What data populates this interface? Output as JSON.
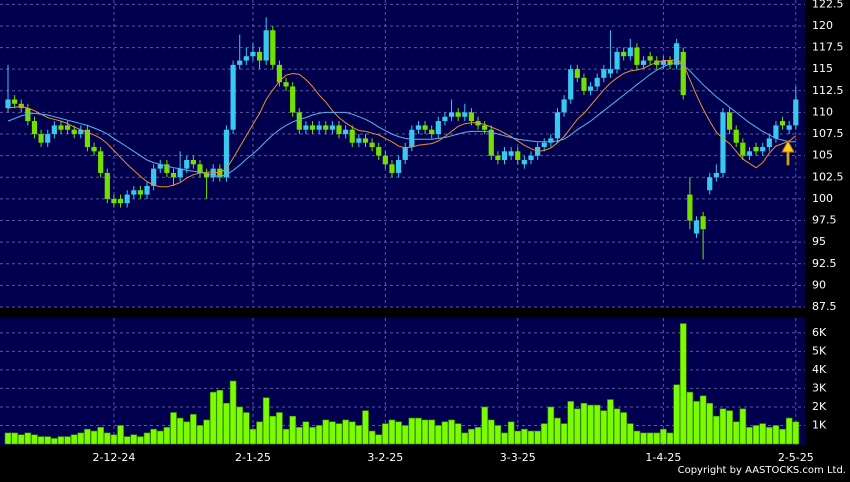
{
  "chart_data": {
    "type": "candlestick",
    "categories": [
      null,
      null,
      null,
      null,
      null,
      null,
      null,
      null,
      null,
      null,
      null,
      null,
      null,
      null,
      null,
      null,
      "2-12-24",
      null,
      null,
      null,
      null,
      null,
      null,
      null,
      null,
      null,
      null,
      null,
      null,
      null,
      null,
      null,
      null,
      null,
      null,
      null,
      null,
      "2-1-25",
      null,
      null,
      null,
      null,
      null,
      null,
      null,
      null,
      null,
      null,
      null,
      null,
      null,
      null,
      null,
      null,
      null,
      null,
      null,
      "3-2-25",
      null,
      null,
      null,
      null,
      null,
      null,
      null,
      null,
      null,
      null,
      null,
      null,
      null,
      null,
      null,
      null,
      null,
      null,
      null,
      "3-3-25",
      null,
      null,
      null,
      null,
      null,
      null,
      null,
      null,
      null,
      null,
      null,
      null,
      null,
      null,
      null,
      null,
      null,
      null,
      null,
      null,
      null,
      "1-4-25",
      null,
      null,
      null,
      null,
      null,
      null,
      null,
      null,
      null,
      null,
      null,
      null,
      null,
      null,
      null,
      null,
      null,
      null,
      null,
      "2-5-25"
    ],
    "open": [
      110.5,
      111.5,
      111,
      110.5,
      109,
      107.5,
      106.5,
      107.5,
      108.5,
      108.5,
      108,
      107.5,
      108,
      106,
      105.5,
      103,
      100,
      100,
      99.5,
      100.5,
      101,
      100.5,
      101.5,
      103.5,
      104,
      103,
      102.5,
      103.5,
      104.5,
      104,
      103,
      102.5,
      103.5,
      102.5,
      108,
      115.5,
      116,
      116.5,
      117,
      116,
      119.5,
      115.5,
      113.5,
      113,
      110,
      108,
      108.5,
      108,
      108.5,
      108,
      108.5,
      107.5,
      108,
      106.5,
      107,
      106.5,
      106,
      105,
      104,
      103,
      104.5,
      106,
      108,
      108.5,
      108,
      107.5,
      109,
      109.5,
      110,
      109.5,
      110,
      109,
      108.5,
      108,
      105,
      104.5,
      105,
      105.5,
      104,
      104.5,
      105,
      106,
      106.5,
      107,
      110,
      111.5,
      115,
      114,
      112.5,
      113,
      114,
      114.5,
      115,
      117,
      116.5,
      117.5,
      115.5,
      116.5,
      116,
      115.5,
      116,
      115.5,
      117,
      100.5,
      96,
      98,
      101,
      102.5,
      103,
      110,
      108,
      106.5,
      105,
      106,
      105.5,
      106,
      107,
      109,
      108,
      108.5
    ],
    "high": [
      115.5,
      112,
      111.5,
      111,
      109.5,
      108,
      108,
      109,
      109,
      109,
      108.5,
      108.5,
      108.5,
      106.5,
      106,
      103.5,
      100.5,
      100.5,
      101,
      101.5,
      101.5,
      102,
      104,
      104.5,
      104.5,
      103.5,
      105.5,
      105,
      105,
      104.5,
      103.5,
      104,
      104,
      108.5,
      116,
      119,
      117.5,
      118,
      117.5,
      121,
      120,
      116,
      114,
      113.5,
      110.5,
      109,
      109,
      109,
      109,
      109,
      109,
      108.5,
      108.5,
      107.5,
      107.5,
      107,
      106.5,
      105.5,
      104.5,
      105,
      106.5,
      108.5,
      109,
      109,
      108.5,
      109.5,
      110,
      111.5,
      110.5,
      111,
      110.5,
      109.5,
      109,
      108.5,
      105.5,
      106,
      106,
      106,
      105,
      105.5,
      106.5,
      107,
      107.5,
      110.5,
      112,
      115.5,
      115.5,
      114.5,
      113.5,
      114.5,
      115.5,
      119.5,
      117.5,
      117.5,
      118.5,
      118,
      116.5,
      117,
      116.5,
      116.5,
      116.5,
      118.5,
      117.5,
      102.5,
      98,
      98.5,
      103,
      104,
      110.5,
      110.5,
      108.5,
      107,
      106,
      106.5,
      106.5,
      107.5,
      109,
      109.5,
      109,
      113
    ],
    "low": [
      110,
      110.5,
      110,
      108.5,
      107,
      106,
      106,
      107,
      107.5,
      107.5,
      107,
      107,
      105.5,
      105,
      102.5,
      99.5,
      99,
      99,
      99,
      100,
      100,
      100,
      101,
      103,
      102.5,
      101.5,
      102,
      103,
      103.5,
      102.5,
      100,
      102,
      102,
      102,
      107.5,
      115,
      115.5,
      116,
      115,
      115.5,
      115,
      113,
      112.5,
      109.5,
      107.5,
      107.5,
      107.5,
      107.5,
      107.5,
      107.5,
      107,
      107,
      106,
      106,
      106,
      105.5,
      104.5,
      103.5,
      102.5,
      102.5,
      104,
      105.5,
      107.5,
      107.5,
      107,
      107,
      108.5,
      109,
      109,
      109,
      108.5,
      108,
      107.5,
      104.5,
      104,
      104,
      104.5,
      104,
      103.5,
      104,
      104.5,
      105.5,
      106,
      106.5,
      109.5,
      111,
      113.5,
      112,
      112,
      112.5,
      113.5,
      114,
      114.5,
      116,
      116,
      115,
      115,
      115.5,
      115,
      115,
      115,
      115,
      111.5,
      96.5,
      95.5,
      93,
      100.5,
      102,
      102.5,
      107.5,
      106,
      104.5,
      104.5,
      105,
      105,
      105.5,
      106.5,
      108,
      107.5,
      108
    ],
    "close": [
      111.5,
      111,
      110.5,
      109,
      107.5,
      106.5,
      107.5,
      108.5,
      108,
      108,
      107.5,
      108,
      106,
      105.5,
      103,
      100,
      99.5,
      99.5,
      100.5,
      101,
      100.5,
      101.5,
      103.5,
      104,
      103,
      102.5,
      103.5,
      104.5,
      104,
      103,
      102.5,
      103.5,
      102.5,
      108,
      115.5,
      116,
      116.5,
      117,
      116,
      119.5,
      115.5,
      113.5,
      113,
      110,
      108,
      108.5,
      108,
      108.5,
      108,
      108.5,
      107.5,
      108,
      106.5,
      107,
      106.5,
      106,
      105,
      104,
      103,
      104.5,
      106,
      108,
      108.5,
      108,
      107.5,
      109,
      109.5,
      110,
      109.5,
      110,
      109,
      108.5,
      108,
      105,
      104.5,
      105.5,
      105.5,
      104.5,
      104.5,
      105,
      106,
      106.5,
      107,
      110,
      111.5,
      115,
      114,
      112.5,
      113,
      114,
      115,
      115,
      117,
      116.5,
      117.5,
      115.5,
      116,
      116,
      115.5,
      116,
      115.5,
      118,
      112,
      97.5,
      97.5,
      96.5,
      102.5,
      103,
      110,
      108,
      106.5,
      105,
      105.5,
      105.5,
      106,
      107,
      108.5,
      108.5,
      108.5,
      111.5
    ],
    "up_color": "#38c8f0",
    "down_color": "#74e000",
    "ylim": [
      87.5,
      123
    ],
    "yticks": [
      87.5,
      90,
      92.5,
      95,
      97.5,
      100,
      102.5,
      105,
      107.5,
      110,
      112.5,
      115,
      117.5,
      120,
      122.5
    ],
    "grid": true,
    "lines": [
      {
        "color": "#e8902a",
        "values": [
          110.5,
          110.6,
          110.7,
          110.5,
          110.2,
          109.8,
          109.4,
          109.2,
          109,
          108.7,
          108.3,
          108,
          107.7,
          107.4,
          107,
          106.4,
          105.6,
          104.8,
          104,
          103.3,
          102.6,
          102,
          101.6,
          101.4,
          101.4,
          101.6,
          101.9,
          102.4,
          102.8,
          103,
          103.1,
          103.1,
          103,
          103.5,
          104.7,
          106,
          107.3,
          108.6,
          109.9,
          111.5,
          112.6,
          113.6,
          114.3,
          114.5,
          114.4,
          113.8,
          113,
          112,
          111.2,
          110.2,
          109.4,
          108.8,
          108.3,
          107.9,
          107.8,
          107.6,
          107.4,
          107,
          106.6,
          106.1,
          105.9,
          106,
          106.2,
          106.3,
          106.4,
          106.7,
          107.2,
          107.8,
          108.4,
          108.7,
          108.8,
          108.8,
          108.6,
          108.3,
          108,
          107.6,
          107.2,
          106.7,
          106.2,
          105.8,
          105.5,
          105.6,
          105.9,
          106.5,
          107.2,
          108.2,
          109.2,
          109.9,
          110.8,
          111.7,
          112.6,
          113.4,
          114,
          114.5,
          114.8,
          114.9,
          115.1,
          115.5,
          115.8,
          116,
          116,
          116.1,
          115.6,
          113.8,
          112,
          110.4,
          109,
          107.7,
          107,
          106.4,
          105.5,
          104.6,
          104.1,
          103.6,
          104.2,
          105.3,
          106.1,
          106.4,
          106.7,
          107.3
        ]
      },
      {
        "color": "#5ab4e8",
        "values": [
          109,
          109.3,
          109.6,
          109.8,
          109.9,
          109.8,
          109.7,
          109.5,
          109.3,
          109.1,
          108.9,
          108.7,
          108.5,
          108.2,
          107.9,
          107.5,
          107,
          106.5,
          106,
          105.5,
          105,
          104.5,
          104.2,
          104,
          103.8,
          103.6,
          103.5,
          103.3,
          103.2,
          103.1,
          102.9,
          102.7,
          102.6,
          102.8,
          103.3,
          103.9,
          104.6,
          105.2,
          105.9,
          106.7,
          107.4,
          108,
          108.5,
          108.9,
          109.2,
          109.4,
          109.7,
          109.9,
          110,
          110,
          110,
          110,
          109.8,
          109.5,
          109.2,
          108.8,
          108.3,
          107.9,
          107.5,
          107.2,
          107,
          106.9,
          106.9,
          106.9,
          106.9,
          107,
          107.1,
          107.3,
          107.5,
          107.7,
          107.8,
          107.8,
          107.8,
          107.7,
          107.5,
          107.3,
          107.1,
          106.9,
          106.8,
          106.7,
          106.6,
          106.6,
          106.6,
          106.7,
          106.9,
          107.4,
          108,
          108.5,
          109,
          109.6,
          110.2,
          110.8,
          111.4,
          112,
          112.6,
          113.2,
          113.8,
          114.4,
          114.9,
          115.3,
          115.6,
          115.8,
          115.5,
          114.8,
          114,
          113.2,
          112.5,
          111.8,
          111.2,
          110.6,
          110,
          109.4,
          108.8,
          108.3,
          107.8,
          107.4,
          107,
          106.8,
          106.6,
          106.6
        ]
      }
    ],
    "volume": {
      "color": "#7cfc00",
      "values": [
        0.6,
        0.6,
        0.5,
        0.6,
        0.5,
        0.4,
        0.4,
        0.3,
        0.4,
        0.4,
        0.5,
        0.6,
        0.8,
        0.7,
        0.9,
        0.6,
        0.5,
        1.0,
        0.4,
        0.5,
        0.4,
        0.6,
        0.8,
        0.7,
        0.9,
        1.7,
        1.4,
        1.2,
        1.6,
        1.0,
        1.3,
        2.8,
        2.9,
        2.2,
        3.4,
        2.0,
        1.7,
        0.8,
        1.2,
        2.5,
        1.5,
        1.7,
        0.8,
        1.5,
        0.9,
        1.2,
        0.9,
        1.0,
        1.3,
        1.2,
        1.1,
        1.3,
        1.2,
        1.0,
        1.8,
        0.7,
        0.5,
        1.1,
        1.3,
        1.2,
        1.0,
        1.4,
        1.4,
        1.3,
        1.3,
        1.0,
        1.2,
        1.3,
        1.1,
        0.6,
        0.8,
        0.9,
        2.0,
        1.3,
        1.0,
        0.6,
        1.2,
        0.7,
        0.8,
        0.7,
        0.7,
        1.1,
        2.0,
        1.4,
        1.1,
        2.3,
        1.9,
        2.2,
        2.1,
        2.1,
        1.8,
        2.4,
        1.9,
        1.7,
        1.1,
        0.7,
        0.6,
        0.6,
        0.6,
        0.8,
        0.6,
        3.2,
        6.5,
        2.8,
        2.3,
        2.6,
        2.2,
        1.5,
        1.9,
        1.8,
        1.2,
        1.9,
        0.9,
        1.0,
        1.1,
        0.9,
        1.0,
        0.8,
        1.4,
        1.2
      ],
      "ylim": [
        0,
        6.8
      ],
      "yticks": [
        {
          "value": 1,
          "label": "1K"
        },
        {
          "value": 2,
          "label": "2K"
        },
        {
          "value": 3,
          "label": "3K"
        },
        {
          "value": 4,
          "label": "4K"
        },
        {
          "value": 5,
          "label": "5K"
        },
        {
          "value": 6,
          "label": "6K"
        }
      ]
    },
    "copyright": "Copyright by AASTOCKS.com Ltd."
  }
}
